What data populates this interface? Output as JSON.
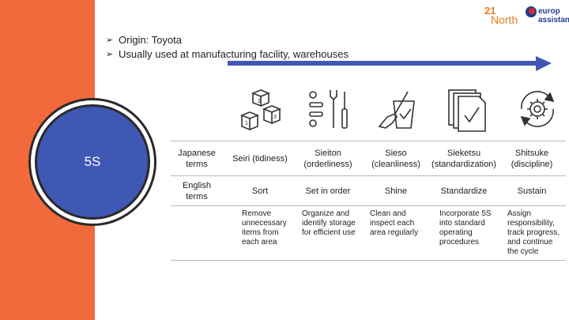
{
  "slide": {
    "center_label": "5S",
    "bullets": [
      "Origin: Toyota",
      "Usually used at manufacturing facility, warehouses"
    ],
    "logos": {
      "north_number": "21",
      "north_word": "North",
      "europ_line1": "europ",
      "europ_line2": "assistance"
    },
    "colors": {
      "side_bar": "#f26a3c",
      "circle": "#3f58b4",
      "arrow": "#3f58b4"
    }
  },
  "table": {
    "row_headers": [
      "Japanese terms",
      "English terms",
      ""
    ],
    "japanese": [
      "Seiri (tidiness)",
      "Sieiton (orderliness)",
      "Sieso (cleanliness)",
      "Sieketsu (standardization)",
      "Shitsuke (discipline)"
    ],
    "english": [
      "Sort",
      "Set in order",
      "Shine",
      "Standardize",
      "Sustain"
    ],
    "descriptions": [
      "Remove unnecessary items from each area",
      "Organize and identify storage for efficient use",
      "Clean and inspect each area regularly",
      "Incorporate 5S into standard operating procedures",
      "Assign responsibility, track progress, and continue the cycle"
    ]
  },
  "icons": [
    "boxes-icon",
    "tools-icon",
    "broom-bucket-icon",
    "document-check-icon",
    "gear-cycle-icon"
  ]
}
